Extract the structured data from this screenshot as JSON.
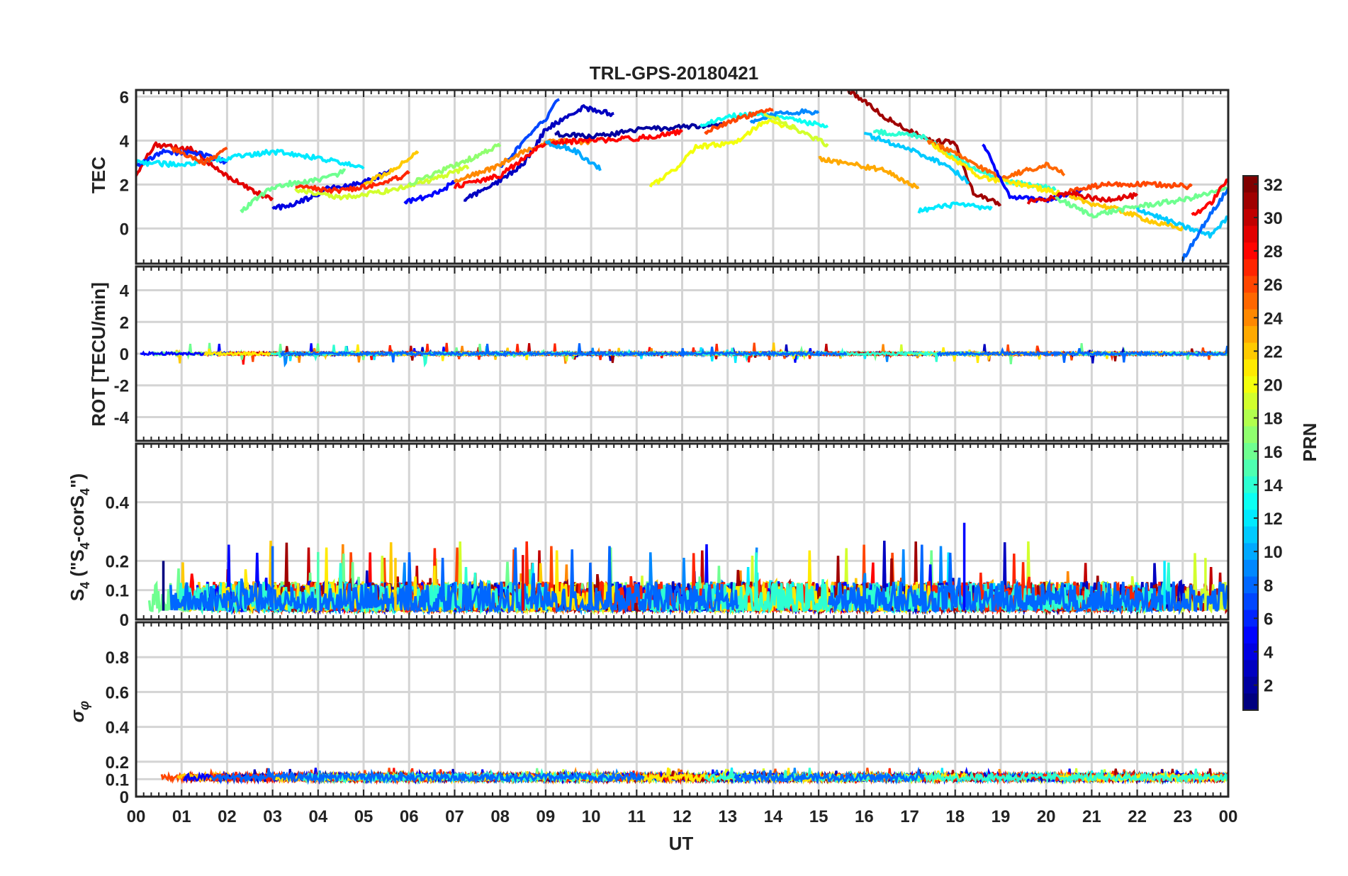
{
  "chart_data": {
    "type": "line",
    "title": "TRL-GPS-20180421",
    "xlabel": "UT",
    "x_tick_labels": [
      "00",
      "01",
      "02",
      "03",
      "04",
      "05",
      "06",
      "07",
      "08",
      "09",
      "10",
      "11",
      "12",
      "13",
      "14",
      "15",
      "16",
      "17",
      "18",
      "19",
      "20",
      "21",
      "22",
      "23",
      "00"
    ],
    "xlim": [
      0,
      24
    ],
    "grid": true,
    "colorbar": {
      "label": "PRN",
      "range": [
        1,
        32
      ],
      "colormap": "jet",
      "tick_labels": [
        "32",
        "30",
        "28",
        "26",
        "24",
        "22",
        "20",
        "18",
        "16",
        "14",
        "12",
        "10",
        "8",
        "6",
        "4",
        "2"
      ]
    },
    "panels": [
      {
        "ylabel": "TEC",
        "ylim": [
          -1.6,
          6.3
        ],
        "y_ticks": [
          0,
          2,
          4,
          6
        ],
        "y_tick_labels": [
          "0",
          "2",
          "4",
          "6"
        ],
        "series": [
          {
            "prn": 29,
            "points": [
              [
                0,
                2.4
              ],
              [
                0.4,
                3.8
              ],
              [
                1.2,
                3.6
              ],
              [
                2.0,
                2.4
              ],
              [
                2.6,
                1.7
              ],
              [
                3.0,
                1.3
              ]
            ]
          },
          {
            "prn": 6,
            "points": [
              [
                0,
                2.8
              ],
              [
                0.6,
                3.5
              ],
              [
                1.4,
                3.4
              ],
              [
                2.0,
                3.0
              ]
            ]
          },
          {
            "prn": 12,
            "points": [
              [
                0,
                3.0
              ],
              [
                1.0,
                2.9
              ],
              [
                2.0,
                3.2
              ],
              [
                3.0,
                3.5
              ],
              [
                4.0,
                3.2
              ],
              [
                5.0,
                2.8
              ]
            ]
          },
          {
            "prn": 26,
            "points": [
              [
                0.8,
                3.6
              ],
              [
                1.5,
                3.0
              ],
              [
                2.0,
                3.6
              ]
            ]
          },
          {
            "prn": 4,
            "points": [
              [
                3.0,
                0.9
              ],
              [
                3.6,
                1.2
              ],
              [
                4.2,
                1.8
              ],
              [
                5.0,
                2.1
              ],
              [
                5.6,
                2.6
              ]
            ]
          },
          {
            "prn": 16,
            "points": [
              [
                2.3,
                0.8
              ],
              [
                2.8,
                1.6
              ],
              [
                3.2,
                2.0
              ],
              [
                4.0,
                2.2
              ],
              [
                4.6,
                2.6
              ]
            ]
          },
          {
            "prn": 19,
            "points": [
              [
                3.5,
                1.8
              ],
              [
                4.5,
                1.4
              ],
              [
                5.5,
                1.7
              ],
              [
                6.5,
                2.2
              ],
              [
                7.3,
                2.8
              ]
            ]
          },
          {
            "prn": 22,
            "points": [
              [
                5.0,
                2.0
              ],
              [
                5.6,
                2.6
              ],
              [
                6.2,
                3.5
              ]
            ]
          },
          {
            "prn": 27,
            "points": [
              [
                3.5,
                1.9
              ],
              [
                4.5,
                1.7
              ],
              [
                5.5,
                2.1
              ],
              [
                6.0,
                2.5
              ]
            ]
          },
          {
            "prn": 17,
            "points": [
              [
                6.0,
                2.0
              ],
              [
                6.8,
                2.7
              ],
              [
                7.5,
                3.3
              ],
              [
                8.0,
                3.8
              ]
            ]
          },
          {
            "prn": 5,
            "points": [
              [
                5.9,
                1.2
              ],
              [
                6.5,
                1.5
              ],
              [
                7.0,
                2.1
              ]
            ]
          },
          {
            "prn": 3,
            "points": [
              [
                7.2,
                1.3
              ],
              [
                7.8,
                1.9
              ],
              [
                8.5,
                2.9
              ],
              [
                9.0,
                4.5
              ],
              [
                9.8,
                5.5
              ],
              [
                10.5,
                5.2
              ]
            ]
          },
          {
            "prn": 7,
            "points": [
              [
                8.0,
                2.8
              ],
              [
                8.6,
                4.1
              ],
              [
                9.0,
                5.0
              ],
              [
                9.3,
                5.9
              ]
            ]
          },
          {
            "prn": 24,
            "points": [
              [
                7.0,
                2.2
              ],
              [
                7.8,
                2.7
              ],
              [
                8.5,
                3.5
              ],
              [
                9.2,
                4.0
              ],
              [
                10.0,
                3.9
              ]
            ]
          },
          {
            "prn": 28,
            "points": [
              [
                7.0,
                1.9
              ],
              [
                8.0,
                2.4
              ],
              [
                9.0,
                3.9
              ],
              [
                10.0,
                4.0
              ],
              [
                11.0,
                4.1
              ],
              [
                12.0,
                4.4
              ]
            ]
          },
          {
            "prn": 10,
            "points": [
              [
                9.0,
                3.9
              ],
              [
                9.6,
                3.6
              ],
              [
                10.2,
                2.7
              ]
            ]
          },
          {
            "prn": 2,
            "points": [
              [
                9.2,
                4.3
              ],
              [
                10.2,
                4.2
              ],
              [
                11.0,
                4.5
              ],
              [
                12.0,
                4.6
              ],
              [
                12.9,
                4.7
              ]
            ]
          },
          {
            "prn": 20,
            "points": [
              [
                11.3,
                1.9
              ],
              [
                11.8,
                2.6
              ],
              [
                12.3,
                3.7
              ],
              [
                13.2,
                3.9
              ],
              [
                13.8,
                4.9
              ],
              [
                14.5,
                4.6
              ]
            ]
          },
          {
            "prn": 13,
            "points": [
              [
                12.4,
                4.7
              ],
              [
                13.0,
                5.1
              ],
              [
                13.7,
                5.2
              ],
              [
                14.4,
                5.0
              ],
              [
                15.2,
                4.6
              ]
            ]
          },
          {
            "prn": 9,
            "points": [
              [
                13.5,
                4.8
              ],
              [
                14.2,
                5.3
              ],
              [
                15.0,
                5.3
              ]
            ]
          },
          {
            "prn": 26,
            "points": [
              [
                12.5,
                4.4
              ],
              [
                13.2,
                5.0
              ],
              [
                14.0,
                5.4
              ]
            ]
          },
          {
            "prn": 19,
            "points": [
              [
                13.8,
                5.3
              ],
              [
                14.6,
                4.4
              ],
              [
                15.2,
                3.8
              ]
            ]
          },
          {
            "prn": 31,
            "points": [
              [
                15.6,
                6.4
              ],
              [
                16.5,
                5.0
              ],
              [
                17.4,
                4.0
              ],
              [
                18.0,
                3.9
              ],
              [
                18.4,
                1.6
              ],
              [
                19.0,
                1.1
              ]
            ]
          },
          {
            "prn": 23,
            "points": [
              [
                15.0,
                3.2
              ],
              [
                15.8,
                2.9
              ],
              [
                16.5,
                2.6
              ],
              [
                17.2,
                1.8
              ]
            ]
          },
          {
            "prn": 11,
            "points": [
              [
                16.0,
                4.3
              ],
              [
                17.0,
                3.6
              ],
              [
                17.8,
                2.9
              ],
              [
                18.3,
                2.1
              ]
            ]
          },
          {
            "prn": 14,
            "points": [
              [
                16.2,
                4.4
              ],
              [
                17.3,
                4.2
              ],
              [
                18.2,
                3.0
              ],
              [
                19.0,
                2.2
              ],
              [
                20.2,
                1.8
              ]
            ]
          },
          {
            "prn": 12,
            "points": [
              [
                17.2,
                0.8
              ],
              [
                18.0,
                1.1
              ],
              [
                18.8,
                0.9
              ]
            ]
          },
          {
            "prn": 25,
            "points": [
              [
                17.4,
                4.0
              ],
              [
                18.0,
                3.4
              ],
              [
                19.0,
                2.3
              ],
              [
                20.0,
                2.9
              ],
              [
                20.4,
                2.5
              ]
            ]
          },
          {
            "prn": 21,
            "points": [
              [
                17.5,
                3.8
              ],
              [
                18.6,
                2.3
              ],
              [
                19.5,
                2.0
              ],
              [
                20.3,
                1.6
              ]
            ]
          },
          {
            "prn": 5,
            "points": [
              [
                18.6,
                3.9
              ],
              [
                19.2,
                1.4
              ],
              [
                20.0,
                1.3
              ],
              [
                20.8,
                1.7
              ]
            ]
          },
          {
            "prn": 26,
            "points": [
              [
                20.5,
                1.7
              ],
              [
                21.3,
                2.0
              ],
              [
                22.5,
                2.0
              ],
              [
                23.2,
                1.9
              ]
            ]
          },
          {
            "prn": 29,
            "points": [
              [
                19.6,
                1.2
              ],
              [
                20.5,
                1.6
              ],
              [
                21.2,
                1.3
              ],
              [
                22.0,
                1.5
              ]
            ]
          },
          {
            "prn": 22,
            "points": [
              [
                20.5,
                1.4
              ],
              [
                21.5,
                0.9
              ],
              [
                22.5,
                0.2
              ],
              [
                23.0,
                0.0
              ]
            ]
          },
          {
            "prn": 16,
            "points": [
              [
                20.2,
                1.4
              ],
              [
                21.0,
                0.6
              ],
              [
                22.0,
                1.0
              ],
              [
                23.0,
                1.3
              ],
              [
                24.0,
                1.8
              ]
            ]
          },
          {
            "prn": 11,
            "points": [
              [
                22.0,
                0.9
              ],
              [
                23.0,
                0.1
              ],
              [
                23.6,
                -0.3
              ],
              [
                24.0,
                0.5
              ]
            ]
          },
          {
            "prn": 8,
            "points": [
              [
                23.0,
                -1.4
              ],
              [
                23.5,
                0.3
              ],
              [
                24.0,
                1.8
              ]
            ]
          },
          {
            "prn": 28,
            "points": [
              [
                23.2,
                0.6
              ],
              [
                23.6,
                1.1
              ],
              [
                24.0,
                2.3
              ]
            ]
          }
        ]
      },
      {
        "ylabel": "ROT [TECU/min]",
        "ylim": [
          -5.5,
          5.5
        ],
        "y_ticks": [
          -4,
          -2,
          0,
          2,
          4
        ],
        "y_tick_labels": [
          "-4",
          "-2",
          "0",
          "2",
          "4"
        ],
        "noise": {
          "baseline": 0.0,
          "amplitude": 0.15,
          "max_spike": 0.7
        }
      },
      {
        "ylabel": "S4 (\"S4-corS4\")",
        "ylim": [
          0,
          0.6
        ],
        "y_ticks": [
          0,
          0.1,
          0.2,
          0.4
        ],
        "y_tick_labels": [
          "0",
          "0.1",
          "0.2",
          "0.4"
        ],
        "noise": {
          "baseline": 0.03,
          "amplitude": 0.1,
          "max_spike": 0.33
        },
        "spikes": [
          [
            0.6,
            0.2
          ],
          [
            3.0,
            0.25
          ],
          [
            4.0,
            0.23
          ],
          [
            5.7,
            0.21
          ],
          [
            8.5,
            0.22
          ],
          [
            18.2,
            0.33
          ],
          [
            22.6,
            0.2
          ],
          [
            23.5,
            0.21
          ]
        ]
      },
      {
        "ylabel": "σφ",
        "ylim": [
          0,
          1.0
        ],
        "y_ticks": [
          0,
          0.1,
          0.2,
          0.4,
          0.6,
          0.8
        ],
        "y_tick_labels": [
          "0",
          "0.1",
          "0.2",
          "0.4",
          "0.6",
          "0.8"
        ],
        "noise": {
          "baseline": 0.11,
          "amplitude": 0.04,
          "max_spike": 0.18
        }
      }
    ]
  },
  "colors": {
    "grid": "#d4d4d4",
    "axis": "#262626",
    "background": "#ffffff"
  }
}
